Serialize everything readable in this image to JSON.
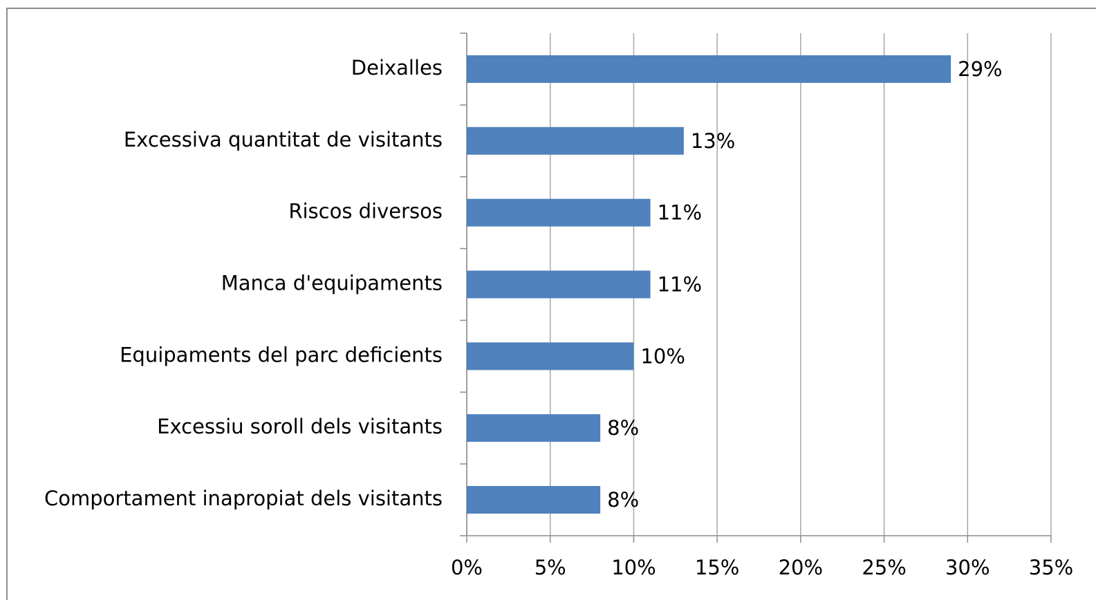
{
  "chart_data": {
    "type": "hbar",
    "categories": [
      "Deixalles",
      "Excessiva quantitat de visitants",
      "Riscos diversos",
      "Manca d'equipaments",
      "Equipaments del parc deficients",
      "Excessiu soroll dels visitants",
      "Comportament inapropiat dels visitants"
    ],
    "values": [
      29,
      13,
      11,
      11,
      10,
      8,
      8
    ],
    "value_labels": [
      "29%",
      "13%",
      "11%",
      "11%",
      "10%",
      "8%",
      "8%"
    ],
    "color": "#4f81bd",
    "xlim": [
      0,
      35
    ],
    "xticks": [
      {
        "value": 0,
        "label": "0%"
      },
      {
        "value": 5,
        "label": "5%"
      },
      {
        "value": 10,
        "label": "10%"
      },
      {
        "value": 15,
        "label": "15%"
      },
      {
        "value": 20,
        "label": "20%"
      },
      {
        "value": 25,
        "label": "25%"
      },
      {
        "value": 30,
        "label": "30%"
      },
      {
        "value": 35,
        "label": "35%"
      }
    ],
    "grid": true
  }
}
